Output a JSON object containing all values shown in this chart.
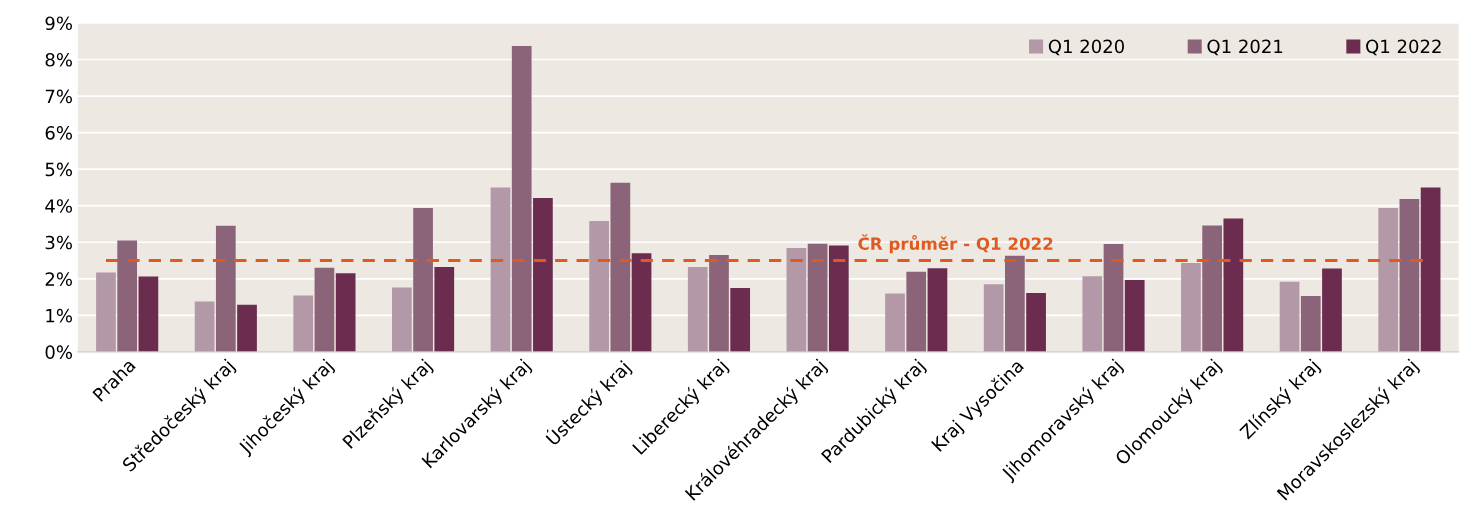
{
  "chart_data": {
    "type": "bar",
    "categories": [
      "Praha",
      "Středočeský kraj",
      "Jihočeský kraj",
      "Plzeňský kraj",
      "Karlovarský kraj",
      "Ústecký kraj",
      "Liberecký kraj",
      "Královéhradecký kraj",
      "Pardubický kraj",
      "Kraj Vysočina",
      "Jihomoravský kraj",
      "Olomoucký kraj",
      "Zlínský kraj",
      "Moravskoslezský kraj"
    ],
    "series": [
      {
        "name": "Q1 2020",
        "color": "#b398a8",
        "values": [
          2.17,
          1.38,
          1.54,
          1.76,
          4.5,
          3.58,
          2.32,
          2.84,
          1.6,
          1.85,
          2.07,
          2.43,
          1.92,
          3.94
        ]
      },
      {
        "name": "Q1 2021",
        "color": "#8c6479",
        "values": [
          3.05,
          3.45,
          2.3,
          3.94,
          8.37,
          4.63,
          2.65,
          2.96,
          2.19,
          2.63,
          2.95,
          3.46,
          1.53,
          4.18
        ]
      },
      {
        "name": "Q1 2022",
        "color": "#6b2c4f",
        "values": [
          2.06,
          1.29,
          2.15,
          2.32,
          4.21,
          2.7,
          1.75,
          2.91,
          2.29,
          1.61,
          1.97,
          3.65,
          2.28,
          4.5
        ]
      }
    ],
    "ylim": [
      0,
      9
    ],
    "yticks": [
      {
        "value": 0,
        "label": "0%"
      },
      {
        "value": 1,
        "label": "1%"
      },
      {
        "value": 2,
        "label": "2%"
      },
      {
        "value": 3,
        "label": "3%"
      },
      {
        "value": 4,
        "label": "4%"
      },
      {
        "value": 5,
        "label": "5%"
      },
      {
        "value": 6,
        "label": "6%"
      },
      {
        "value": 7,
        "label": "7%"
      },
      {
        "value": 8,
        "label": "8%"
      },
      {
        "value": 9,
        "label": "9%"
      }
    ],
    "ref_lines": [
      {
        "axis": "y",
        "value": 2.5,
        "label": "ČR průměr - Q1 2022",
        "color": "#e05a1e",
        "line_style": "dashed"
      }
    ],
    "grid": "y",
    "legend": "top right"
  }
}
